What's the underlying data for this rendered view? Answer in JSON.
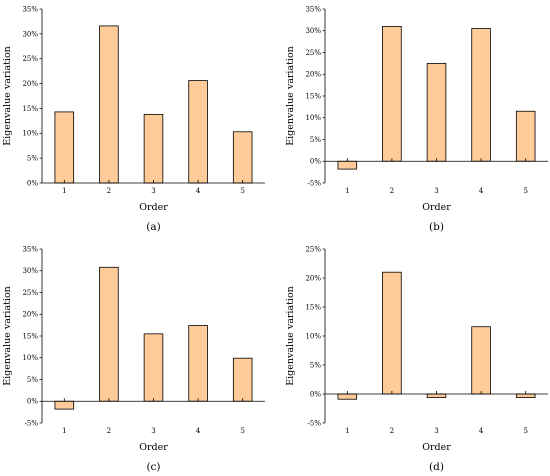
{
  "style": {
    "bar_fill": "#ffcc99",
    "bar_stroke": "#000000"
  },
  "chart_data": [
    {
      "type": "bar",
      "caption": "(a)",
      "categories": [
        "1",
        "2",
        "3",
        "4",
        "5"
      ],
      "values": [
        14.3,
        31.6,
        13.8,
        20.6,
        10.3
      ],
      "ylim": [
        0,
        35
      ],
      "yticks": [
        "0%",
        "5%",
        "10%",
        "15%",
        "20%",
        "25%",
        "30%",
        "35%"
      ],
      "xlabel": "Order",
      "ylabel": "Eigenvalue variation",
      "grid": false
    },
    {
      "type": "bar",
      "caption": "(b)",
      "categories": [
        "1",
        "2",
        "3",
        "4",
        "5"
      ],
      "values": [
        -1.8,
        31.0,
        22.5,
        30.5,
        11.5
      ],
      "ylim": [
        -5,
        35
      ],
      "yticks": [
        "-5%",
        "0%",
        "5%",
        "10%",
        "15%",
        "20%",
        "25%",
        "30%",
        "35%"
      ],
      "xlabel": "Order",
      "ylabel": "Eigenvalue variation",
      "grid": false
    },
    {
      "type": "bar",
      "caption": "(c)",
      "categories": [
        "1",
        "2",
        "3",
        "4",
        "5"
      ],
      "values": [
        -1.8,
        30.8,
        15.5,
        17.4,
        9.9
      ],
      "ylim": [
        -5,
        35
      ],
      "yticks": [
        "-5%",
        "0%",
        "5%",
        "10%",
        "15%",
        "20%",
        "25%",
        "30%",
        "35%"
      ],
      "xlabel": "Order",
      "ylabel": "Eigenvalue variation",
      "grid": false
    },
    {
      "type": "bar",
      "caption": "(d)",
      "categories": [
        "1",
        "2",
        "3",
        "4",
        "5"
      ],
      "values": [
        -0.9,
        21.0,
        -0.6,
        11.6,
        -0.6
      ],
      "ylim": [
        -5,
        25
      ],
      "yticks": [
        "-5%",
        "0%",
        "5%",
        "10%",
        "15%",
        "20%",
        "25%"
      ],
      "xlabel": "Order",
      "ylabel": "Eigenvalue variation",
      "grid": false
    }
  ]
}
